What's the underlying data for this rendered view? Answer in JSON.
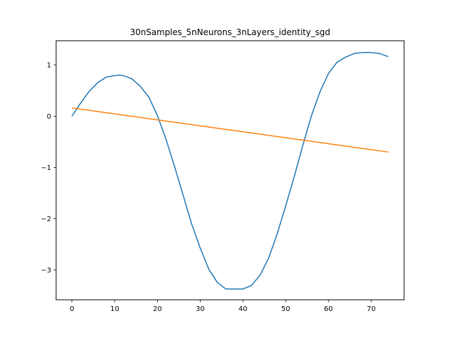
{
  "chart_data": {
    "type": "line",
    "title": "30nSamples_5nNeurons_3nLayers_identity_sgd",
    "xlabel": "",
    "ylabel": "",
    "xlim": [
      -3.7,
      77.7
    ],
    "ylim": [
      -3.58,
      1.47
    ],
    "xticks": [
      0,
      10,
      20,
      30,
      40,
      50,
      60,
      70
    ],
    "yticks": [
      -3,
      -2,
      -1,
      0,
      1
    ],
    "xtick_labels": [
      "0",
      "10",
      "20",
      "30",
      "40",
      "50",
      "60",
      "70"
    ],
    "ytick_labels": [
      "−3",
      "−2",
      "−1",
      "0",
      "1"
    ],
    "grid": false,
    "series": [
      {
        "name": "blue",
        "color": "#1f77b4",
        "x": [
          0,
          2,
          4,
          6,
          8,
          10,
          11,
          12,
          14,
          16,
          18,
          20,
          22,
          24,
          26,
          28,
          30,
          32,
          34,
          36,
          38,
          40,
          42,
          44,
          46,
          48,
          50,
          52,
          54,
          56,
          58,
          60,
          62,
          64,
          66,
          68,
          70,
          72,
          74
        ],
        "y": [
          0.0,
          0.25,
          0.48,
          0.65,
          0.76,
          0.79,
          0.8,
          0.79,
          0.73,
          0.58,
          0.37,
          0.01,
          -0.45,
          -0.98,
          -1.54,
          -2.1,
          -2.57,
          -2.98,
          -3.24,
          -3.37,
          -3.37,
          -3.37,
          -3.3,
          -3.1,
          -2.77,
          -2.3,
          -1.75,
          -1.18,
          -0.57,
          0.0,
          0.47,
          0.83,
          1.05,
          1.15,
          1.22,
          1.24,
          1.24,
          1.22,
          1.16
        ]
      },
      {
        "name": "orange",
        "color": "#ff7f0e",
        "x": [
          0,
          74
        ],
        "y": [
          0.16,
          -0.7
        ]
      }
    ]
  }
}
